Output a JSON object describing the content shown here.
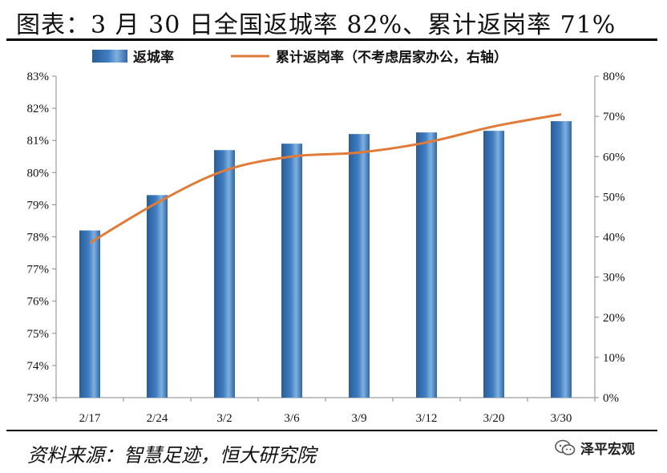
{
  "title": "图表：3 月 30 日全国返城率 82%、累计返岗率 71%",
  "source": "资料来源：智慧足迹，恒大研究院",
  "watermark": {
    "text": "泽平宏观",
    "icon": "wechat-icon"
  },
  "colors": {
    "bar": "#3f7dc0",
    "line": "#e07b39"
  },
  "chart_data": {
    "type": "bar",
    "categories": [
      "2/17",
      "2/24",
      "3/2",
      "3/6",
      "3/9",
      "3/12",
      "3/20",
      "3/30"
    ],
    "series": [
      {
        "name": "返城率",
        "type": "bar",
        "axis": "left",
        "values": [
          78.2,
          79.3,
          80.7,
          80.9,
          81.2,
          81.25,
          81.3,
          81.6
        ]
      },
      {
        "name": "累计返岗率（不考虑居家办公，右轴）",
        "type": "line",
        "axis": "right",
        "values": [
          38.5,
          48.5,
          56.5,
          60.0,
          61.0,
          63.5,
          67.5,
          70.5
        ]
      }
    ],
    "y_left": {
      "min": 73,
      "max": 83,
      "step": 1,
      "tick_labels": [
        "73%",
        "74%",
        "75%",
        "76%",
        "77%",
        "78%",
        "79%",
        "80%",
        "81%",
        "82%",
        "83%"
      ]
    },
    "y_right": {
      "min": 0,
      "max": 80,
      "step": 10,
      "tick_labels": [
        "0%",
        "10%",
        "20%",
        "30%",
        "40%",
        "50%",
        "60%",
        "70%",
        "80%"
      ]
    },
    "legend_position": "top",
    "grid": false
  }
}
